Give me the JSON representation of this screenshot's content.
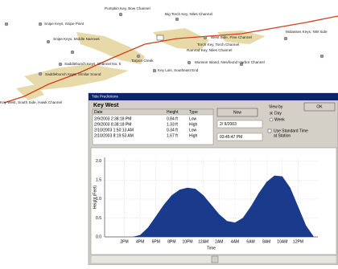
{
  "map": {
    "labels": [
      "Pumpkin Key, Bow Channel",
      "Snipe Keys, Snipe Point",
      "Big Torch Key, Niles Channel",
      "West Side, Pine Channel",
      "Molasses Keys, NW Side",
      "Snipe Keys, Middle Narrows",
      "Torch Key, Torch Channel",
      "Ramrod Key, Niles Channel",
      "Tarpon Creek",
      "Saddlebunch Keys, Channel No. 5",
      "Munson Island, Newfound Harbor Channel",
      "Saddlebunch Keys, Similar Sound",
      "Key Lois, Southeast End",
      "Key West, South Side, Hawk Channel"
    ]
  },
  "dialog": {
    "title": "Tide Predictions",
    "station": "Key West",
    "table": {
      "headers": [
        "Date",
        "Height",
        "Type"
      ],
      "rows": [
        [
          "2/9/2003 2:38:18 PM",
          "0.84 ft",
          "Low"
        ],
        [
          "2/9/2003 8:38:18 PM",
          "1.33 ft",
          "High"
        ],
        [
          "2/10/2003 1:50:13 AM",
          "0.34 ft",
          "Low"
        ],
        [
          "2/10/2003 8:19:53 AM",
          "1.67 ft",
          "High"
        ]
      ]
    },
    "now_button": "Now",
    "date": "2/ 9/2003",
    "time": "03:45:47 PM",
    "view_by": "View by",
    "view_options": [
      "Day",
      "Week"
    ],
    "standard_time": [
      "Use Standard Time",
      "at Station"
    ],
    "ok_button": "OK"
  },
  "chart_data": {
    "type": "area",
    "color": "#1a3a8c",
    "ylabel": "Height (Feet)",
    "xlabel": "Time",
    "x": [
      0,
      1,
      2,
      3,
      4,
      5,
      6,
      7,
      8,
      9,
      10,
      11,
      12,
      13,
      14,
      15,
      16,
      17,
      18,
      19,
      20,
      21,
      22,
      23,
      24
    ],
    "values": [
      0,
      0,
      0.05,
      0.25,
      0.55,
      0.85,
      1.1,
      1.25,
      1.3,
      1.27,
      1.1,
      0.85,
      0.6,
      0.42,
      0.38,
      0.5,
      0.8,
      1.15,
      1.45,
      1.62,
      1.6,
      1.3,
      0.8,
      0.3,
      0
    ],
    "xlim": [
      -2.5,
      24.5
    ],
    "ylim": [
      0,
      2.1
    ],
    "xticks": [
      {
        "value": 0,
        "label": "2PM"
      },
      {
        "value": 2,
        "label": "4PM"
      },
      {
        "value": 4,
        "label": "6PM"
      },
      {
        "value": 6,
        "label": "8PM"
      },
      {
        "value": 8,
        "label": "10PM"
      },
      {
        "value": 10,
        "label": "12AM"
      },
      {
        "value": 12,
        "label": "2AM"
      },
      {
        "value": 14,
        "label": "4AM"
      },
      {
        "value": 16,
        "label": "6AM"
      },
      {
        "value": 18,
        "label": "8AM"
      },
      {
        "value": 20,
        "label": "10AM"
      },
      {
        "value": 22,
        "label": "12PM"
      }
    ],
    "yticks": [
      {
        "value": 0,
        "label": "0.0"
      },
      0.5,
      {
        "value": 1,
        "label": "1.0"
      },
      1.5,
      {
        "value": 2,
        "label": "2.0"
      }
    ],
    "grid": true
  }
}
